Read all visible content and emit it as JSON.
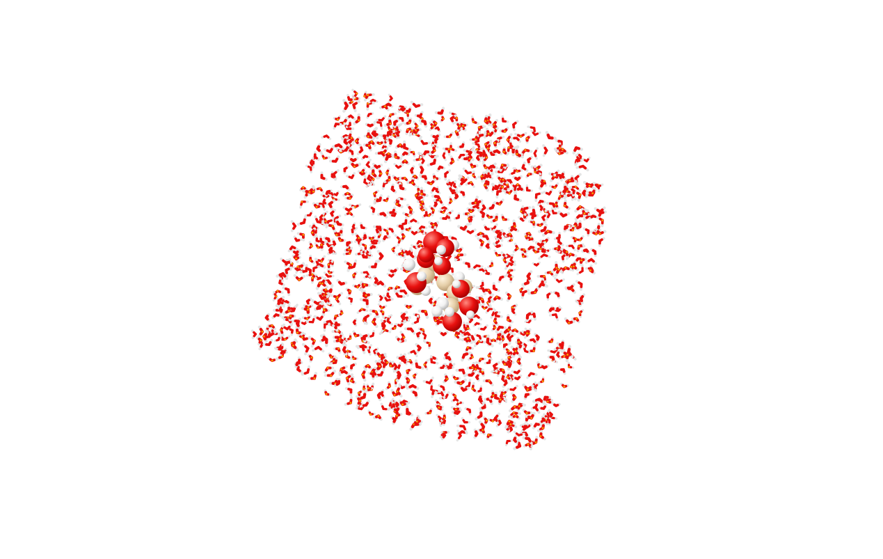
{
  "scene": {
    "background": "#ffffff",
    "representation": {
      "solvent": "licorice",
      "solute": "space-filling"
    },
    "colors": {
      "oxygen": "#e8110f",
      "oxygen_shade": "#a80000",
      "hydrogen": "#f2f2f2",
      "hydrogen_shade": "#b5b5b5",
      "carbon": "#e6cfa9",
      "carbon_shade": "#b79b72",
      "bond_center": "#f5a400"
    }
  }
}
